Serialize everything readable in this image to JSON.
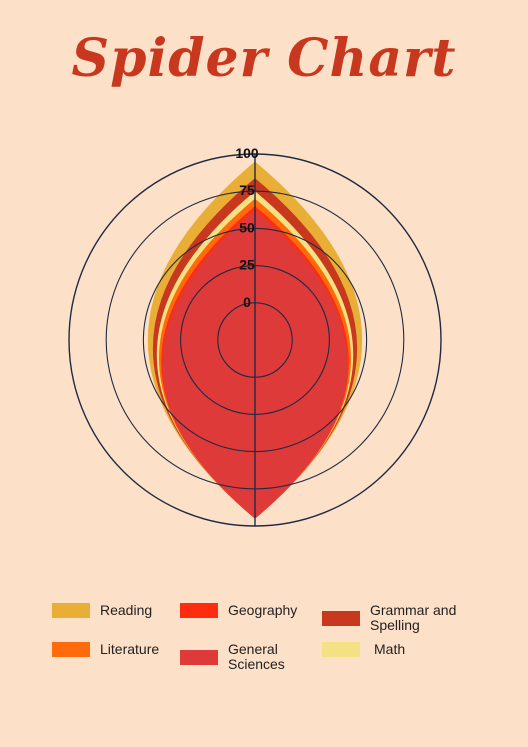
{
  "chart_data": {
    "type": "radar",
    "title": "Spider Chart",
    "radial_ticks": [
      "100",
      "75",
      "50",
      "25",
      "0"
    ],
    "axis_count": 2,
    "series": [
      {
        "name": "Reading",
        "color": "#e9ae36",
        "values": [
          96,
          96
        ]
      },
      {
        "name": "Grammar and Spelling",
        "color": "#c8381e",
        "values": [
          87,
          96
        ]
      },
      {
        "name": "Math",
        "color": "#f3e183",
        "values": [
          80,
          96
        ]
      },
      {
        "name": "Literature",
        "color": "#ff6a0d",
        "values": [
          76,
          96
        ]
      },
      {
        "name": "Geography",
        "color": "#ff2d0f",
        "values": [
          72,
          96
        ]
      },
      {
        "name": "General Sciences",
        "color": "#de3a3a",
        "values": [
          70,
          96
        ]
      }
    ],
    "legend_placement": "bottom",
    "grid": true
  },
  "legend": [
    {
      "label": "Reading",
      "color": "#e9ae36"
    },
    {
      "label": "Geography",
      "color": "#ff2d0f"
    },
    {
      "label": "Grammar and Spelling",
      "color": "#c8381e"
    },
    {
      "label": "Literature",
      "color": "#ff6a0d"
    },
    {
      "label": "General Sciences",
      "color": "#de3a3a"
    },
    {
      "label": "Math",
      "color": "#f3e183"
    }
  ]
}
